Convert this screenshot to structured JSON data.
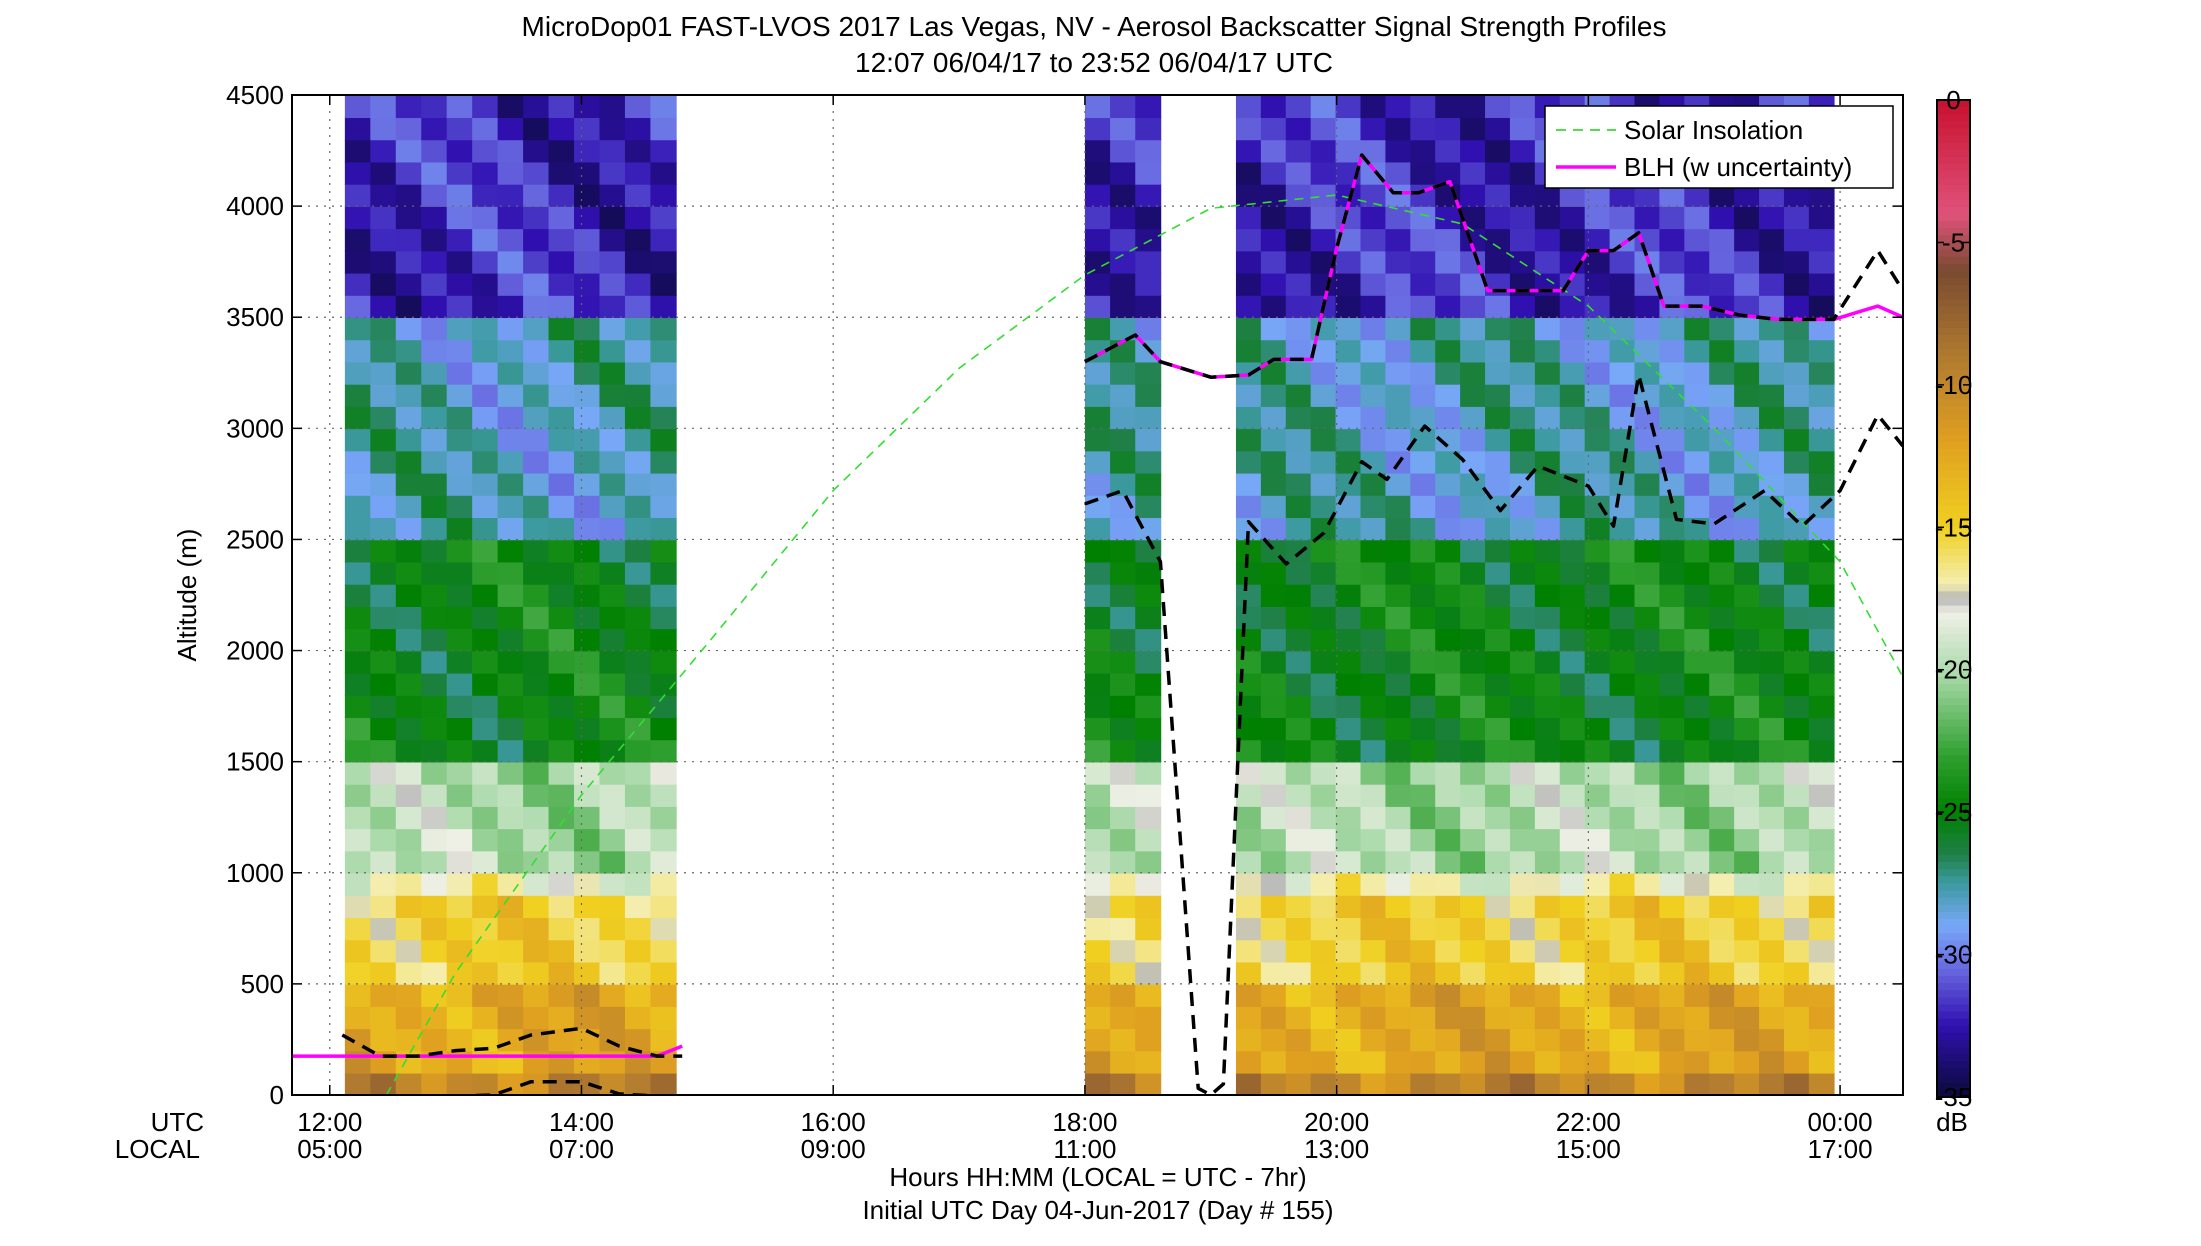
{
  "figure": {
    "title_line1": "MicroDop01 FAST-LVOS 2017 Las Vegas, NV - Aerosol Backscatter Signal Strength Profiles",
    "title_line2": "12:07 06/04/17 to 23:52 06/04/17  UTC",
    "xlabel": "Hours HH:MM  (LOCAL = UTC - 7hr)",
    "xlabel2": "Initial UTC Day 04-Jun-2017 (Day # 155)",
    "ylabel": "Altitude (m)",
    "utc_row_label": "UTC",
    "local_row_label": "LOCAL",
    "colorbar_unit": "dB"
  },
  "chart_data": {
    "type": "heatmap",
    "x_range_hours_utc": [
      11.7,
      24.5
    ],
    "ylim": [
      0,
      4500
    ],
    "y_ticks": [
      0,
      500,
      1000,
      1500,
      2000,
      2500,
      3000,
      3500,
      4000,
      4500
    ],
    "y_tick_labels": [
      "0",
      "500",
      "1000",
      "1500",
      "2000",
      "2500",
      "3000",
      "3500",
      "4000",
      "4500"
    ],
    "x_ticks_hours_utc": [
      12,
      14,
      16,
      18,
      20,
      22,
      24
    ],
    "x_tick_labels_utc": [
      "12:00",
      "14:00",
      "16:00",
      "18:00",
      "20:00",
      "22:00",
      "00:00"
    ],
    "x_tick_labels_local": [
      "05:00",
      "07:00",
      "09:00",
      "11:00",
      "13:00",
      "15:00",
      "17:00"
    ],
    "grid": true,
    "legend_position": "top-right",
    "legend": [
      "Solar Insolation",
      "BLH (w uncertainty)"
    ],
    "colorbar": {
      "range_db": [
        -35,
        0
      ],
      "ticks": [
        0,
        -5,
        -10,
        -15,
        -20,
        -25,
        -30,
        -35
      ],
      "tick_labels": [
        "0",
        "-5",
        "-10",
        "-15",
        "-20",
        "-25",
        "-30",
        "-35"
      ],
      "colormap": [
        {
          "db": 0,
          "color": "#c8102e"
        },
        {
          "db": -4,
          "color": "#e0527a"
        },
        {
          "db": -6,
          "color": "#7a4a30"
        },
        {
          "db": -9,
          "color": "#b07a30"
        },
        {
          "db": -12,
          "color": "#e0a020"
        },
        {
          "db": -15,
          "color": "#f0d020"
        },
        {
          "db": -17,
          "color": "#f4eeb0"
        },
        {
          "db": -17.5,
          "color": "#b4b4b4"
        },
        {
          "db": -18,
          "color": "#f0f0e6"
        },
        {
          "db": -20,
          "color": "#b0dcb0"
        },
        {
          "db": -23,
          "color": "#30a030"
        },
        {
          "db": -25,
          "color": "#008000"
        },
        {
          "db": -26.5,
          "color": "#208048"
        },
        {
          "db": -27.5,
          "color": "#3c9aa0"
        },
        {
          "db": -29,
          "color": "#78a8f8"
        },
        {
          "db": -30.5,
          "color": "#6868e0"
        },
        {
          "db": -32.5,
          "color": "#3010b0"
        },
        {
          "db": -35,
          "color": "#0a0a38"
        }
      ]
    },
    "backscatter_segments_utc_hours": [
      [
        12.12,
        14.75
      ],
      [
        18.0,
        18.6
      ],
      [
        19.2,
        23.95
      ]
    ],
    "height_bins_m": 100,
    "backscatter_profile_regime": [
      {
        "altitude_m": [
          0,
          150
        ],
        "db": -10
      },
      {
        "altitude_m": [
          150,
          500
        ],
        "db": -12.5
      },
      {
        "altitude_m": [
          500,
          900
        ],
        "db": -15
      },
      {
        "altitude_m": [
          900,
          1000
        ],
        "db": -17.5
      },
      {
        "altitude_m": [
          1000,
          1500
        ],
        "db": -20
      },
      {
        "altitude_m": [
          1500,
          2500
        ],
        "db": -25
      },
      {
        "altitude_m": [
          2500,
          3500
        ],
        "db": -28
      },
      {
        "altitude_m": [
          3500,
          4500
        ],
        "db": -32
      }
    ],
    "series": [
      {
        "name": "Solar Insolation",
        "style": "dashed",
        "color": "#33dd33",
        "x": [
          12.45,
          13.0,
          14.0,
          15.0,
          16.0,
          17.0,
          18.0,
          19.0,
          20.0,
          21.0,
          22.0,
          23.0,
          24.0,
          24.5
        ],
        "y": [
          0,
          550,
          1350,
          2030,
          2720,
          3270,
          3690,
          3990,
          4050,
          3920,
          3550,
          3000,
          2400,
          1880
        ]
      },
      {
        "name": "BLH (w uncertainty)",
        "color": "#ff00ff",
        "x": [
          11.7,
          12.1,
          12.4,
          12.7,
          13.0,
          13.3,
          13.6,
          14.0,
          14.3,
          14.6,
          14.8
        ],
        "y": [
          175,
          175,
          175,
          175,
          175,
          175,
          175,
          175,
          175,
          175,
          220
        ]
      },
      {
        "name": "",
        "color": "#ff00ff",
        "x": [
          18.0,
          18.4,
          18.6,
          19.0,
          19.3,
          19.5,
          19.8,
          20.0,
          20.2,
          20.45,
          20.65,
          20.9,
          21.2,
          21.5,
          21.8,
          22.0,
          22.2,
          22.4,
          22.6,
          22.9,
          23.2,
          23.5,
          23.95,
          24.3,
          24.5
        ],
        "y": [
          3300,
          3420,
          3300,
          3230,
          3240,
          3310,
          3310,
          3810,
          4230,
          4060,
          4060,
          4110,
          3620,
          3620,
          3620,
          3800,
          3800,
          3880,
          3550,
          3550,
          3510,
          3490,
          3490,
          3550,
          3500
        ]
      },
      {
        "name": "",
        "style": "dashed",
        "color": "#000000",
        "x": [
          11.7,
          12.1,
          12.4,
          12.7,
          13.0,
          13.3,
          13.6,
          14.0,
          14.3,
          14.6,
          14.8
        ],
        "y": [
          -5,
          -5,
          -5,
          -5,
          -5,
          0,
          60,
          60,
          5,
          -5,
          -5
        ]
      },
      {
        "name": "",
        "style": "dashed",
        "color": "#000000",
        "x": [
          12.1,
          12.4,
          12.7,
          13.0,
          13.3,
          13.6,
          14.0,
          14.3,
          14.6,
          14.8
        ],
        "y": [
          270,
          175,
          175,
          200,
          210,
          270,
          300,
          220,
          175,
          175
        ]
      },
      {
        "name": "",
        "style": "dashed",
        "color": "#000000",
        "x": [
          18.0,
          18.3,
          18.6,
          18.9,
          19.0,
          19.1,
          19.3,
          19.6,
          19.9,
          20.2,
          20.4,
          20.7,
          21.0,
          21.3,
          21.6,
          22.0,
          22.2,
          22.4,
          22.7,
          23.0,
          23.4,
          23.7,
          24.0,
          24.3,
          24.5
        ],
        "y": [
          2660,
          2720,
          2400,
          30,
          0,
          50,
          2580,
          2390,
          2530,
          2850,
          2770,
          3010,
          2860,
          2630,
          2830,
          2740,
          2560,
          3240,
          2590,
          2570,
          2720,
          2560,
          2720,
          3060,
          2920
        ]
      },
      {
        "name": "",
        "style": "dashed",
        "color": "#000000",
        "x": [
          18.0,
          18.4,
          18.6,
          19.0,
          19.3,
          19.5,
          19.8,
          20.0,
          20.2,
          20.45,
          20.65,
          20.9,
          21.2,
          21.5,
          21.8,
          22.0,
          22.2,
          22.4,
          22.6,
          22.9,
          23.2,
          23.5,
          23.95,
          24.3,
          24.5
        ],
        "y": [
          3300,
          3420,
          3300,
          3230,
          3240,
          3310,
          3310,
          3810,
          4230,
          4060,
          4060,
          4110,
          3620,
          3620,
          3620,
          3800,
          3800,
          3880,
          3550,
          3550,
          3510,
          3490,
          3490,
          3800,
          3620
        ]
      }
    ]
  }
}
